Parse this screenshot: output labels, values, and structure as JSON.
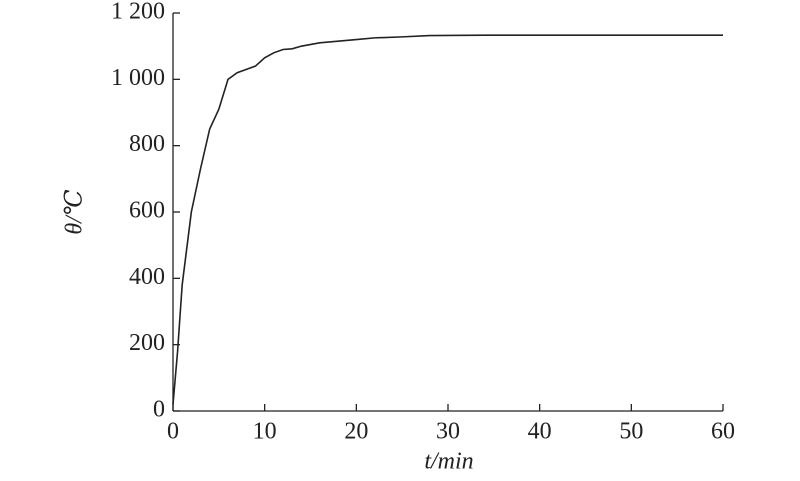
{
  "chart_data": {
    "type": "line",
    "x_label": "t/min",
    "y_label": "θ/℃",
    "series": [
      {
        "color": "#222222",
        "x": [
          0,
          0.5,
          1,
          2,
          3,
          4,
          5,
          6,
          7,
          8,
          9,
          10,
          11,
          12,
          13,
          14,
          16,
          18,
          20,
          22,
          25,
          28,
          34,
          60
        ],
        "values": [
          20,
          180,
          380,
          600,
          730,
          850,
          910,
          1000,
          1020,
          1030,
          1040,
          1065,
          1080,
          1090,
          1092,
          1100,
          1110,
          1115,
          1120,
          1125,
          1128,
          1132,
          1133,
          1133
        ]
      }
    ],
    "xlim": [
      0,
      60
    ],
    "xticks": [
      0,
      10,
      20,
      30,
      40,
      50,
      60
    ],
    "ylim": [
      0,
      1200
    ],
    "yticks": [
      0,
      200,
      400,
      600,
      800,
      {
        "value": 1000,
        "label": "1 000"
      },
      {
        "value": 1200,
        "label": "1 200"
      }
    ],
    "grid": false
  }
}
